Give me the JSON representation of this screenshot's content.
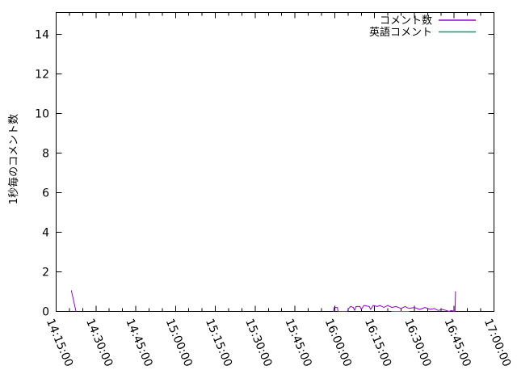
{
  "window": {
    "background": "#ffffff",
    "foreground": "#000000"
  },
  "chart_data": {
    "type": "line",
    "title": "",
    "xlabel": "",
    "ylabel": "1秒毎のコメント数",
    "grid": false,
    "legend_position": "top-right-inside",
    "x_axis": {
      "start": "14:15:00",
      "end": "17:00:00",
      "major_tick_interval_minutes": 15,
      "minor_tick_interval_minutes": 5,
      "tick_labels": [
        "14:15:00",
        "14:30:00",
        "14:45:00",
        "15:00:00",
        "15:15:00",
        "15:30:00",
        "15:45:00",
        "16:00:00",
        "16:15:00",
        "16:30:00",
        "16:45:00",
        "17:00:00"
      ]
    },
    "y_axis": {
      "range": [
        0,
        15.1
      ],
      "ticks": [
        0,
        2,
        4,
        6,
        8,
        10,
        12,
        14
      ],
      "tick_labels": [
        "0",
        "2",
        "4",
        "6",
        "8",
        "10",
        "12",
        "14"
      ]
    },
    "series": [
      {
        "name": "コメント数",
        "color": "#9400d3",
        "segments": [
          [
            [
              "14:20:45",
              1.05
            ],
            [
              "14:22:30",
              0
            ]
          ],
          [
            [
              "15:59:30",
              0
            ],
            [
              "15:59:45",
              0.2
            ],
            [
              "16:01:00",
              0.2
            ],
            [
              "16:01:15",
              0
            ],
            [
              "16:04:45",
              0
            ],
            [
              "16:05:15",
              0.15
            ],
            [
              "16:06:00",
              0.25
            ],
            [
              "16:07:00",
              0.2
            ],
            [
              "16:07:30",
              0.05
            ],
            [
              "16:08:00",
              0.25
            ],
            [
              "16:09:30",
              0.25
            ],
            [
              "16:10:00",
              0.1
            ],
            [
              "16:11:00",
              0.3
            ],
            [
              "16:13:00",
              0.25
            ],
            [
              "16:13:30",
              0.1
            ],
            [
              "16:14:30",
              0.3
            ],
            [
              "16:16:00",
              0.25
            ],
            [
              "16:17:00",
              0.3
            ],
            [
              "16:18:30",
              0.2
            ],
            [
              "16:20:00",
              0.3
            ],
            [
              "16:21:30",
              0.2
            ],
            [
              "16:23:00",
              0.25
            ],
            [
              "16:25:00",
              0.15
            ],
            [
              "16:26:30",
              0.25
            ],
            [
              "16:28:00",
              0.15
            ],
            [
              "16:30:00",
              0.2
            ],
            [
              "16:32:00",
              0.1
            ],
            [
              "16:34:00",
              0.2
            ],
            [
              "16:36:00",
              0.1
            ],
            [
              "16:37:30",
              0.15
            ],
            [
              "16:39:00",
              0.05
            ],
            [
              "16:40:30",
              0.1
            ],
            [
              "16:42:00",
              0.05
            ],
            [
              "16:43:00",
              0
            ],
            [
              "16:44:00",
              0.05
            ],
            [
              "16:45:00",
              0
            ],
            [
              "16:45:20",
              0
            ],
            [
              "16:45:30",
              1
            ]
          ]
        ]
      },
      {
        "name": "英語コメント",
        "color": "#009e73",
        "segments": [
          [
            [
              "16:21:30",
              0
            ],
            [
              "16:28:00",
              0
            ]
          ]
        ]
      }
    ]
  }
}
